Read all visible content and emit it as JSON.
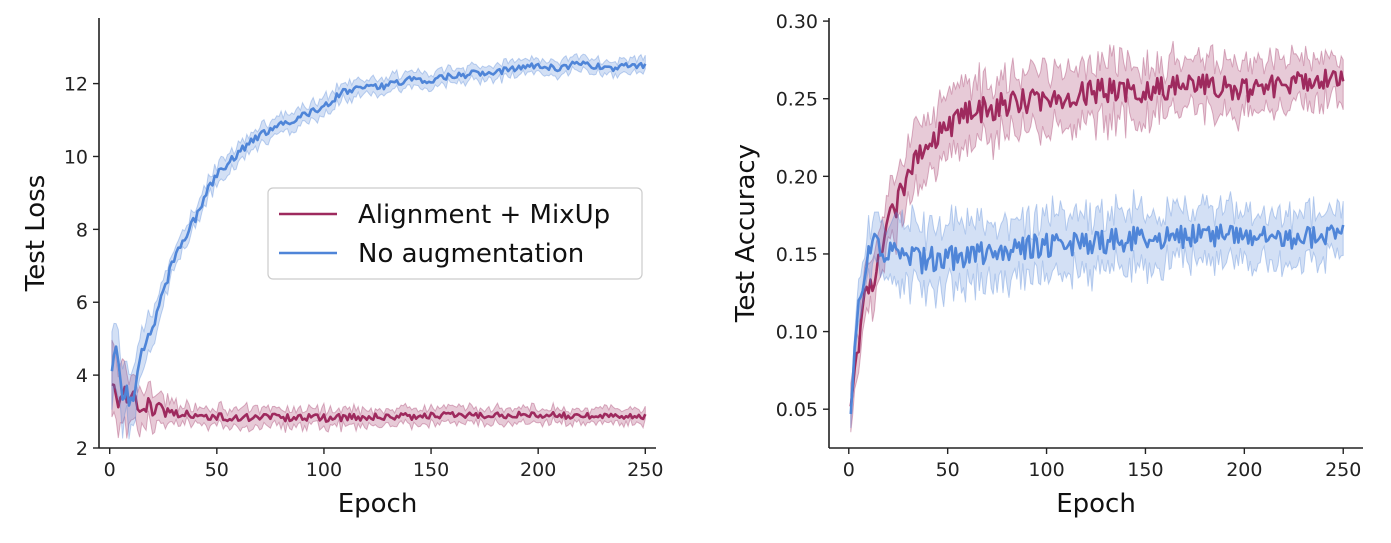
{
  "colors": {
    "alignment_mixup": "#9e2a5e",
    "no_augmentation": "#4f85d8",
    "axis": "#222222"
  },
  "chart_data": [
    {
      "type": "line",
      "title": "",
      "xlabel": "Epoch",
      "ylabel": "Test Loss",
      "xlim": [
        -5,
        255
      ],
      "ylim": [
        2.0,
        13.8
      ],
      "xticks": [
        0,
        50,
        100,
        150,
        200,
        250
      ],
      "yticks": [
        2,
        4,
        6,
        8,
        10,
        12
      ],
      "xtick_labels": [
        "0",
        "50",
        "100",
        "150",
        "200",
        "250"
      ],
      "ytick_labels": [
        "2",
        "4",
        "6",
        "8",
        "10",
        "12"
      ],
      "legend": {
        "position": "center-right"
      },
      "grid": false,
      "series": [
        {
          "name": "Alignment + MixUp",
          "color": "alignment_mixup",
          "x": [
            1,
            5,
            10,
            15,
            20,
            30,
            40,
            50,
            60,
            75,
            100,
            125,
            150,
            175,
            200,
            225,
            250
          ],
          "y": [
            3.65,
            3.4,
            3.3,
            3.2,
            3.1,
            2.95,
            2.9,
            2.85,
            2.82,
            2.85,
            2.82,
            2.85,
            2.88,
            2.9,
            2.9,
            2.88,
            2.85
          ]
        },
        {
          "name": "No augmentation",
          "color": "no_augmentation",
          "x": [
            1,
            3,
            5,
            8,
            10,
            12,
            15,
            20,
            25,
            30,
            35,
            40,
            45,
            50,
            60,
            70,
            80,
            90,
            100,
            110,
            125,
            140,
            150,
            160,
            175,
            190,
            200,
            210,
            220,
            225,
            235,
            240,
            250
          ],
          "y": [
            4.0,
            4.6,
            3.7,
            3.5,
            3.4,
            3.6,
            4.7,
            5.3,
            6.3,
            7.2,
            7.8,
            8.3,
            9.0,
            9.5,
            10.1,
            10.6,
            10.9,
            11.1,
            11.4,
            11.8,
            11.9,
            12.1,
            12.1,
            12.2,
            12.3,
            12.4,
            12.5,
            12.4,
            12.6,
            12.5,
            12.4,
            12.5,
            12.5
          ]
        }
      ]
    },
    {
      "type": "line",
      "title": "",
      "xlabel": "Epoch",
      "ylabel": "Test Accuracy",
      "xlim": [
        -10,
        260
      ],
      "ylim": [
        0.025,
        0.302
      ],
      "xticks": [
        0,
        50,
        100,
        150,
        200,
        250
      ],
      "yticks": [
        0.05,
        0.1,
        0.15,
        0.2,
        0.25,
        0.3
      ],
      "xtick_labels": [
        "0",
        "50",
        "100",
        "150",
        "200",
        "250"
      ],
      "ytick_labels": [
        "0.05",
        "0.10",
        "0.15",
        "0.20",
        "0.25",
        "0.30"
      ],
      "grid": false,
      "series": [
        {
          "name": "Alignment + MixUp",
          "color": "alignment_mixup",
          "x": [
            1,
            3,
            5,
            8,
            10,
            12,
            15,
            20,
            25,
            30,
            35,
            40,
            50,
            60,
            75,
            100,
            125,
            150,
            175,
            200,
            225,
            250
          ],
          "y": [
            0.05,
            0.08,
            0.09,
            0.12,
            0.13,
            0.125,
            0.15,
            0.17,
            0.185,
            0.2,
            0.215,
            0.225,
            0.23,
            0.24,
            0.245,
            0.25,
            0.255,
            0.255,
            0.26,
            0.255,
            0.26,
            0.265
          ]
        },
        {
          "name": "No augmentation",
          "color": "no_augmentation",
          "x": [
            1,
            3,
            5,
            8,
            10,
            12,
            15,
            20,
            25,
            30,
            40,
            50,
            60,
            75,
            100,
            125,
            150,
            175,
            200,
            225,
            250
          ],
          "y": [
            0.045,
            0.09,
            0.12,
            0.135,
            0.15,
            0.16,
            0.155,
            0.15,
            0.148,
            0.147,
            0.146,
            0.147,
            0.15,
            0.153,
            0.155,
            0.158,
            0.16,
            0.162,
            0.163,
            0.16,
            0.162
          ]
        }
      ]
    }
  ]
}
